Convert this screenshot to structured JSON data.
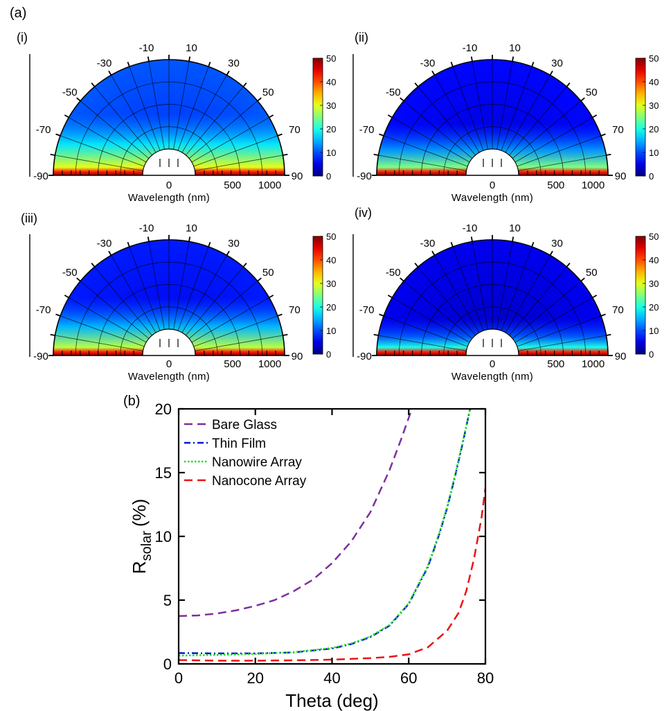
{
  "figure": {
    "label_a": "(a)",
    "label_b": "(b)"
  },
  "polar_panels": {
    "angle_ticks": [
      "-10",
      "10",
      "-30",
      "30",
      "-50",
      "50",
      "-70",
      "70",
      "-90",
      "90"
    ],
    "angle_values": [
      -10,
      10,
      -30,
      30,
      -50,
      50,
      -70,
      70,
      -90,
      90
    ],
    "wavelength_ticks": [
      "0",
      "500",
      "1000"
    ],
    "wavelength_tick_values": [
      0,
      500,
      1000
    ],
    "xlabel": "Wavelength (nm)",
    "colorbar_ticks": [
      "50",
      "40",
      "30",
      "20",
      "10",
      "0"
    ],
    "colorbar_range": [
      0,
      50
    ],
    "colormap": "jet",
    "panels": [
      {
        "label": "(i)",
        "edge_intensity": 30,
        "bright_band": 0.3,
        "background": 8
      },
      {
        "label": "(ii)",
        "edge_intensity": 25,
        "bright_band": 0.25,
        "background": 4
      },
      {
        "label": "(iii)",
        "edge_intensity": 28,
        "bright_band": 0.28,
        "background": 5
      },
      {
        "label": "(iv)",
        "edge_intensity": 20,
        "bright_band": 0.18,
        "background": 3
      }
    ]
  },
  "chart_data": {
    "type": "line",
    "xlabel_main": "Theta (deg)",
    "ylabel_main": "R",
    "ylabel_sub": "solar",
    "ylabel_unit": "(%)",
    "xlim": [
      0,
      80
    ],
    "ylim": [
      0,
      20
    ],
    "xticks": [
      "0",
      "20",
      "40",
      "60",
      "80"
    ],
    "xtick_values": [
      0,
      20,
      40,
      60,
      80
    ],
    "yticks": [
      "0",
      "5",
      "10",
      "15",
      "20"
    ],
    "ytick_values": [
      0,
      5,
      10,
      15,
      20
    ],
    "grid": false,
    "legend_position": "top-left",
    "series": [
      {
        "name": "Bare Glass",
        "color": "#7b2f9e",
        "dash": "dashed",
        "x": [
          0,
          5,
          10,
          15,
          20,
          25,
          30,
          35,
          40,
          45,
          50,
          55,
          58,
          60,
          62
        ],
        "y": [
          3.75,
          3.8,
          3.95,
          4.2,
          4.55,
          5.0,
          5.7,
          6.6,
          7.9,
          9.6,
          11.9,
          15.2,
          17.6,
          19.3,
          21.0
        ]
      },
      {
        "name": "Thin Film",
        "color": "#0018d0",
        "dash": "dashdot",
        "x": [
          0,
          10,
          20,
          30,
          40,
          45,
          50,
          55,
          60,
          65,
          68,
          70,
          72,
          74,
          76
        ],
        "y": [
          0.85,
          0.82,
          0.82,
          0.9,
          1.2,
          1.55,
          2.1,
          3.0,
          4.7,
          7.6,
          10.2,
          12.2,
          14.6,
          17.2,
          20.0
        ]
      },
      {
        "name": "Nanowire Array",
        "color": "#22dd22",
        "dash": "dotted",
        "x": [
          0,
          10,
          20,
          30,
          40,
          45,
          50,
          55,
          60,
          65,
          68,
          70,
          72,
          74,
          76
        ],
        "y": [
          0.65,
          0.7,
          0.78,
          0.92,
          1.25,
          1.6,
          2.15,
          3.05,
          4.75,
          7.7,
          10.3,
          12.3,
          14.7,
          17.3,
          20.0
        ]
      },
      {
        "name": "Nanocone Array",
        "color": "#ee1111",
        "dash": "dashed",
        "x": [
          0,
          10,
          20,
          30,
          40,
          50,
          55,
          60,
          65,
          70,
          73,
          75,
          77,
          79,
          80
        ],
        "y": [
          0.3,
          0.25,
          0.25,
          0.28,
          0.33,
          0.45,
          0.55,
          0.75,
          1.3,
          2.6,
          4.0,
          5.7,
          8.2,
          11.5,
          13.8
        ]
      }
    ]
  }
}
